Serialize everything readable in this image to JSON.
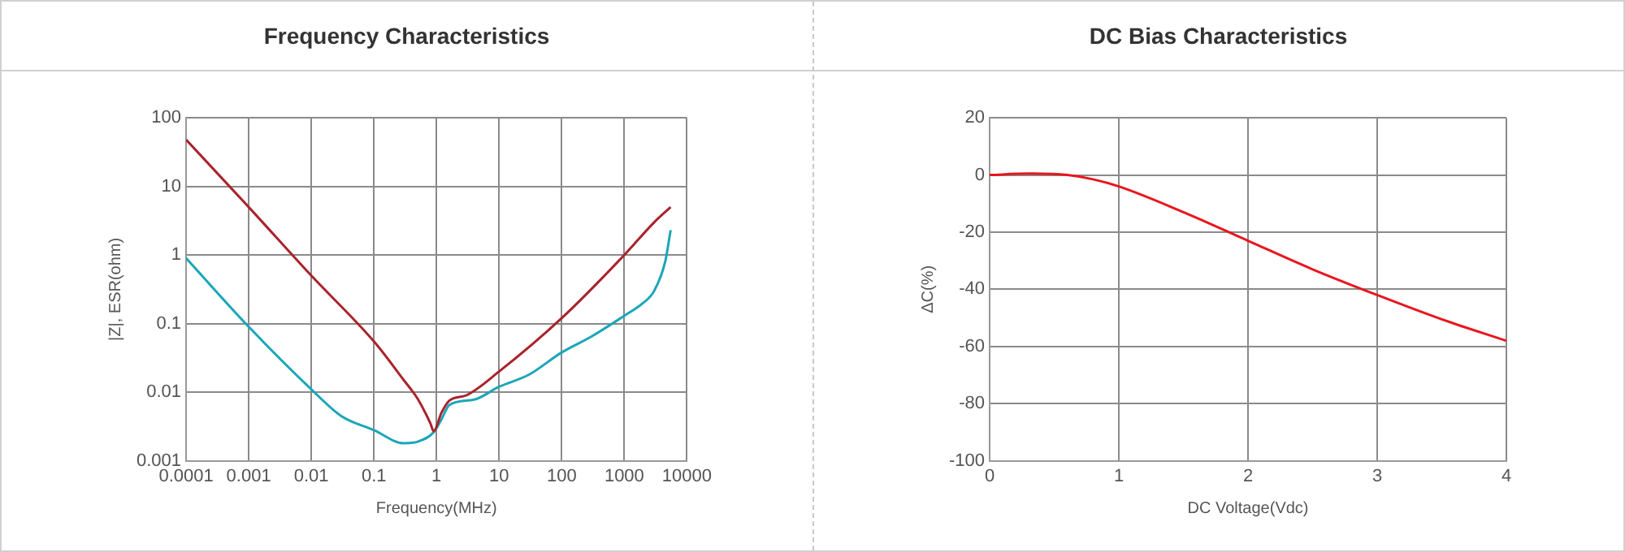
{
  "chart_data": [
    {
      "type": "line",
      "title": "Frequency Characteristics",
      "xlabel": "Frequency(MHz)",
      "ylabel": "|Z|, ESR(ohm)",
      "log": "xy",
      "grid": true,
      "legend": false,
      "marker": "none",
      "line_style": "solid",
      "xlim": [
        0.0001,
        10000
      ],
      "xticks": [
        0.0001,
        0.001,
        0.01,
        0.1,
        1,
        10,
        100,
        1000,
        10000
      ],
      "ylim": [
        0.001,
        100
      ],
      "yticks": [
        0.001,
        0.01,
        0.1,
        1,
        10,
        100
      ],
      "series": [
        {
          "color": "#a8242c",
          "x": [
            0.0001,
            0.001,
            0.01,
            0.1,
            0.3,
            0.5,
            0.8,
            0.9,
            1.2,
            1.6,
            3,
            10,
            100,
            1000,
            3000,
            5500
          ],
          "values": [
            48,
            5,
            0.5,
            0.055,
            0.015,
            0.008,
            0.0035,
            0.0027,
            0.005,
            0.0075,
            0.009,
            0.02,
            0.12,
            1,
            3,
            5
          ]
        },
        {
          "color": "#1ba6b8",
          "x": [
            0.0001,
            0.001,
            0.01,
            0.03,
            0.1,
            0.3,
            0.5,
            0.9,
            1.2,
            1.6,
            4,
            10,
            30,
            100,
            300,
            1000,
            2000,
            3000,
            4500,
            5500
          ],
          "values": [
            0.9,
            0.09,
            0.011,
            0.0045,
            0.0028,
            0.0018,
            0.0019,
            0.0026,
            0.004,
            0.0065,
            0.0078,
            0.012,
            0.018,
            0.038,
            0.065,
            0.13,
            0.2,
            0.3,
            0.8,
            2.3
          ]
        }
      ]
    },
    {
      "type": "line",
      "title": "DC Bias Characteristics",
      "xlabel": "DC Voltage(Vdc)",
      "ylabel": "ΔC(%)",
      "grid": true,
      "legend": false,
      "marker": "none",
      "line_style": "solid",
      "xlim": [
        0,
        4
      ],
      "xticks": [
        0,
        1,
        2,
        3,
        4
      ],
      "ylim": [
        -100,
        20
      ],
      "yticks": [
        -100,
        -80,
        -60,
        -40,
        -20,
        0,
        20
      ],
      "series": [
        {
          "color": "#e8161e",
          "x": [
            0,
            0.3,
            0.6,
            0.8,
            1,
            1.5,
            2,
            2.5,
            3,
            3.5,
            4
          ],
          "values": [
            0,
            0.5,
            0,
            -1.5,
            -4,
            -13,
            -23,
            -33,
            -42,
            -50.5,
            -58
          ]
        }
      ]
    }
  ]
}
